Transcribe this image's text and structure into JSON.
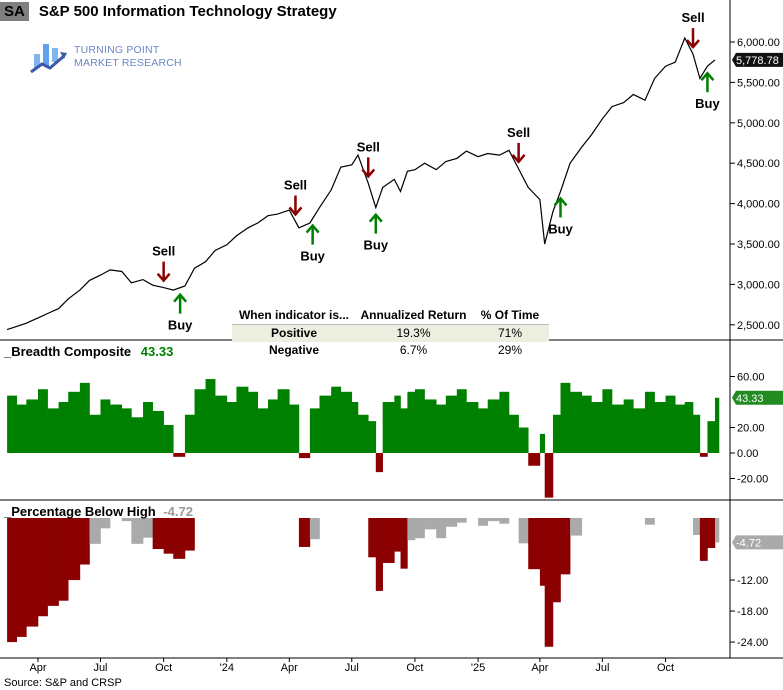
{
  "header": {
    "badge": "SA",
    "title": "S&P 500 Information Technology  Strategy"
  },
  "logo": {
    "line1": "TURNING POINT",
    "line2": "MARKET RESEARCH"
  },
  "colors": {
    "price_line": "#000000",
    "breadth_pos": "#008000",
    "breadth_neg": "#8b0000",
    "drawdown_red": "#8b0000",
    "drawdown_gray": "#aaaaaa",
    "sell": "#8b0000",
    "buy": "#008000",
    "logo": "#5b7fc9"
  },
  "table": {
    "headers": [
      "When indicator is...",
      "Annualized Return",
      "% Of Time"
    ],
    "rows": [
      [
        "Positive",
        "19.3%",
        "71%"
      ],
      [
        "Negative",
        "6.7%",
        "29%"
      ]
    ]
  },
  "source": "Source: S&P and CRSP",
  "chart_data": [
    {
      "type": "line",
      "title": "S&P 500 Information Technology  Strategy",
      "last_value_label": "5,778.78",
      "ylim": [
        2400,
        6500
      ],
      "yticks": [
        "2,500.00",
        "3,000.00",
        "3,500.00",
        "4,000.00",
        "4,500.00",
        "5,000.00",
        "5,500.00",
        "6,000.00"
      ],
      "ytick_values": [
        2500,
        3000,
        3500,
        4000,
        4500,
        5000,
        5500,
        6000
      ],
      "dates": [
        "2023-02-15",
        "2023-03-01",
        "2023-03-15",
        "2023-04-01",
        "2023-04-15",
        "2023-05-01",
        "2023-05-15",
        "2023-06-01",
        "2023-06-15",
        "2023-07-01",
        "2023-07-15",
        "2023-08-01",
        "2023-08-15",
        "2023-09-01",
        "2023-09-15",
        "2023-10-01",
        "2023-10-15",
        "2023-11-01",
        "2023-11-15",
        "2023-12-01",
        "2023-12-15",
        "2024-01-01",
        "2024-01-15",
        "2024-02-01",
        "2024-02-15",
        "2024-03-01",
        "2024-03-15",
        "2024-04-01",
        "2024-04-15",
        "2024-05-01",
        "2024-05-15",
        "2024-06-01",
        "2024-06-15",
        "2024-07-01",
        "2024-07-10",
        "2024-07-25",
        "2024-08-05",
        "2024-08-15",
        "2024-09-01",
        "2024-09-10",
        "2024-09-20",
        "2024-10-01",
        "2024-10-15",
        "2024-11-01",
        "2024-11-15",
        "2024-12-01",
        "2024-12-15",
        "2025-01-01",
        "2025-01-15",
        "2025-02-01",
        "2025-02-15",
        "2025-03-01",
        "2025-03-15",
        "2025-04-01",
        "2025-04-08",
        "2025-04-20",
        "2025-05-01",
        "2025-05-15",
        "2025-06-01",
        "2025-06-15",
        "2025-07-01",
        "2025-07-15",
        "2025-08-01",
        "2025-08-15",
        "2025-09-01",
        "2025-09-15",
        "2025-10-01",
        "2025-10-15",
        "2025-10-29",
        "2025-11-10",
        "2025-11-20",
        "2025-12-01",
        "2025-12-12"
      ],
      "values": [
        2440,
        2480,
        2520,
        2585,
        2640,
        2700,
        2820,
        2930,
        3050,
        3115,
        3180,
        3160,
        3020,
        3060,
        2990,
        2960,
        2930,
        2980,
        3200,
        3280,
        3420,
        3490,
        3600,
        3700,
        3760,
        3850,
        3870,
        3920,
        3700,
        3760,
        3950,
        4170,
        4450,
        4480,
        4600,
        4250,
        3950,
        4200,
        4300,
        4150,
        4400,
        4420,
        4500,
        4420,
        4520,
        4560,
        4650,
        4580,
        4620,
        4600,
        4660,
        4430,
        4200,
        4050,
        3500,
        3900,
        4150,
        4500,
        4700,
        4850,
        5050,
        5200,
        5250,
        5350,
        5280,
        5550,
        5700,
        5750,
        6050,
        5850,
        5550,
        5700,
        5778.78
      ],
      "signals": [
        {
          "type": "Sell",
          "date": "2023-10-01"
        },
        {
          "type": "Buy",
          "date": "2023-10-25"
        },
        {
          "type": "Sell",
          "date": "2024-04-10"
        },
        {
          "type": "Buy",
          "date": "2024-05-05"
        },
        {
          "type": "Sell",
          "date": "2024-07-25"
        },
        {
          "type": "Buy",
          "date": "2024-08-05"
        },
        {
          "type": "Sell",
          "date": "2025-03-01"
        },
        {
          "type": "Buy",
          "date": "2025-05-01"
        },
        {
          "type": "Sell",
          "date": "2025-11-10"
        },
        {
          "type": "Buy",
          "date": "2025-12-01"
        }
      ],
      "xticks": [
        "Apr",
        "Jul",
        "Oct",
        "'24",
        "Apr",
        "Jul",
        "Oct",
        "'25",
        "Apr",
        "Jul",
        "Oct"
      ],
      "xtick_dates": [
        "2023-04-01",
        "2023-07-01",
        "2023-10-01",
        "2024-01-01",
        "2024-04-01",
        "2024-07-01",
        "2024-10-01",
        "2025-01-01",
        "2025-04-01",
        "2025-07-01",
        "2025-10-01"
      ]
    },
    {
      "type": "bar",
      "title": "_Breadth Composite",
      "last_value_label": "43.33",
      "ylim": [
        -35,
        80
      ],
      "yticks": [
        "60.00",
        "20.00",
        "0.00",
        "-20.00"
      ],
      "ytick_values": [
        60,
        20,
        0,
        -20
      ],
      "values": [
        45,
        38,
        42,
        50,
        35,
        40,
        48,
        55,
        30,
        42,
        38,
        35,
        28,
        40,
        33,
        22,
        -3,
        30,
        50,
        58,
        45,
        40,
        52,
        48,
        35,
        42,
        50,
        38,
        -4,
        35,
        45,
        52,
        48,
        40,
        30,
        25,
        -15,
        40,
        45,
        35,
        48,
        50,
        42,
        38,
        45,
        50,
        40,
        35,
        42,
        48,
        30,
        20,
        -10,
        15,
        -35,
        30,
        55,
        48,
        45,
        40,
        50,
        38,
        42,
        35,
        48,
        40,
        45,
        38,
        40,
        30,
        -3,
        25,
        43.33
      ]
    },
    {
      "type": "bar",
      "title": "_Percentage Below High",
      "last_value_label": "-4.72",
      "ylim": [
        -26,
        3
      ],
      "yticks": [
        "-12.00",
        "-18.00",
        "-24.00"
      ],
      "ytick_values": [
        -12,
        -18,
        -24
      ],
      "values": [
        -24,
        -23,
        -21,
        -19,
        -17,
        -16,
        -12,
        -9,
        -5,
        -2,
        0,
        -0.6,
        -5.0,
        -3.8,
        -6.0,
        -6.9,
        -7.9,
        -6.3,
        0,
        0,
        0,
        0,
        0,
        0,
        0,
        0,
        0,
        0,
        -5.6,
        -4.1,
        0,
        0,
        0,
        0,
        0,
        -7.6,
        -14.1,
        -8.7,
        -6.5,
        -9.8,
        -4.3,
        -3.9,
        -2.2,
        -3.9,
        -1.7,
        -0.9,
        0,
        -1.5,
        -0.6,
        -1.1,
        0,
        -4.9,
        -9.9,
        -13.1,
        -24.9,
        -16.3,
        -10.9,
        -3.4,
        0,
        0,
        0,
        0,
        0,
        0,
        -1.3,
        0,
        0,
        0,
        0,
        -3.3,
        -8.3,
        -5.8,
        -4.72
      ]
    }
  ]
}
